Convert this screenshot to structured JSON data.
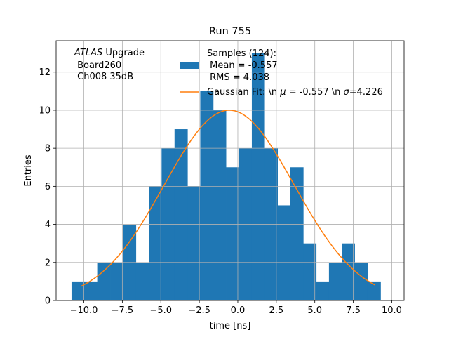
{
  "chart_data": {
    "type": "bar",
    "title": "Run 755",
    "xlabel": "time [ns]",
    "ylabel": "Entries",
    "xlim": [
      -11.8,
      10.8
    ],
    "ylim": [
      0,
      13.65
    ],
    "x_ticks": [
      -10.0,
      -7.5,
      -5.0,
      -2.5,
      0.0,
      2.5,
      5.0,
      7.5,
      10.0
    ],
    "x_tick_labels": [
      "−10.0",
      "−7.5",
      "−5.0",
      "−2.5",
      "0.0",
      "2.5",
      "5.0",
      "7.5",
      "10.0"
    ],
    "y_ticks": [
      0,
      2,
      4,
      6,
      8,
      10,
      12
    ],
    "y_tick_labels": [
      "0",
      "2",
      "4",
      "6",
      "8",
      "10",
      "12"
    ],
    "grid": true,
    "legend_position": "top-right",
    "annotation": {
      "line1_italic": "ATLAS",
      "line1_rest": " Upgrade",
      "line2": " Board260",
      "line3": " Ch008 35dB"
    },
    "histogram": {
      "color": "#1f77b4",
      "bin_edges": [
        -10.8,
        -9.96,
        -9.13,
        -8.29,
        -7.45,
        -6.62,
        -5.78,
        -4.95,
        -4.11,
        -3.27,
        -2.44,
        -1.6,
        -0.77,
        0.07,
        0.91,
        1.74,
        2.58,
        3.41,
        4.25,
        5.09,
        5.92,
        6.76,
        7.59,
        8.43,
        9.27
      ],
      "counts": [
        1,
        1,
        2,
        2,
        4,
        2,
        6,
        8,
        9,
        6,
        11,
        10,
        7,
        8,
        13,
        8,
        5,
        7,
        3,
        1,
        2,
        3,
        2,
        1
      ],
      "legend_lines": [
        "Samples (124):",
        " Mean = -0.557",
        " RMS = 4.038"
      ]
    },
    "fit": {
      "color": "#ff7f0e",
      "mean": -0.557,
      "sigma": 4.226,
      "amplitude": 10.0,
      "x_range": [
        -10.2,
        8.9
      ],
      "legend_parts": [
        "Gaussian Fit: \\n ",
        "μ",
        " = -0.557 \\n ",
        "σ",
        "=4.226"
      ]
    }
  }
}
